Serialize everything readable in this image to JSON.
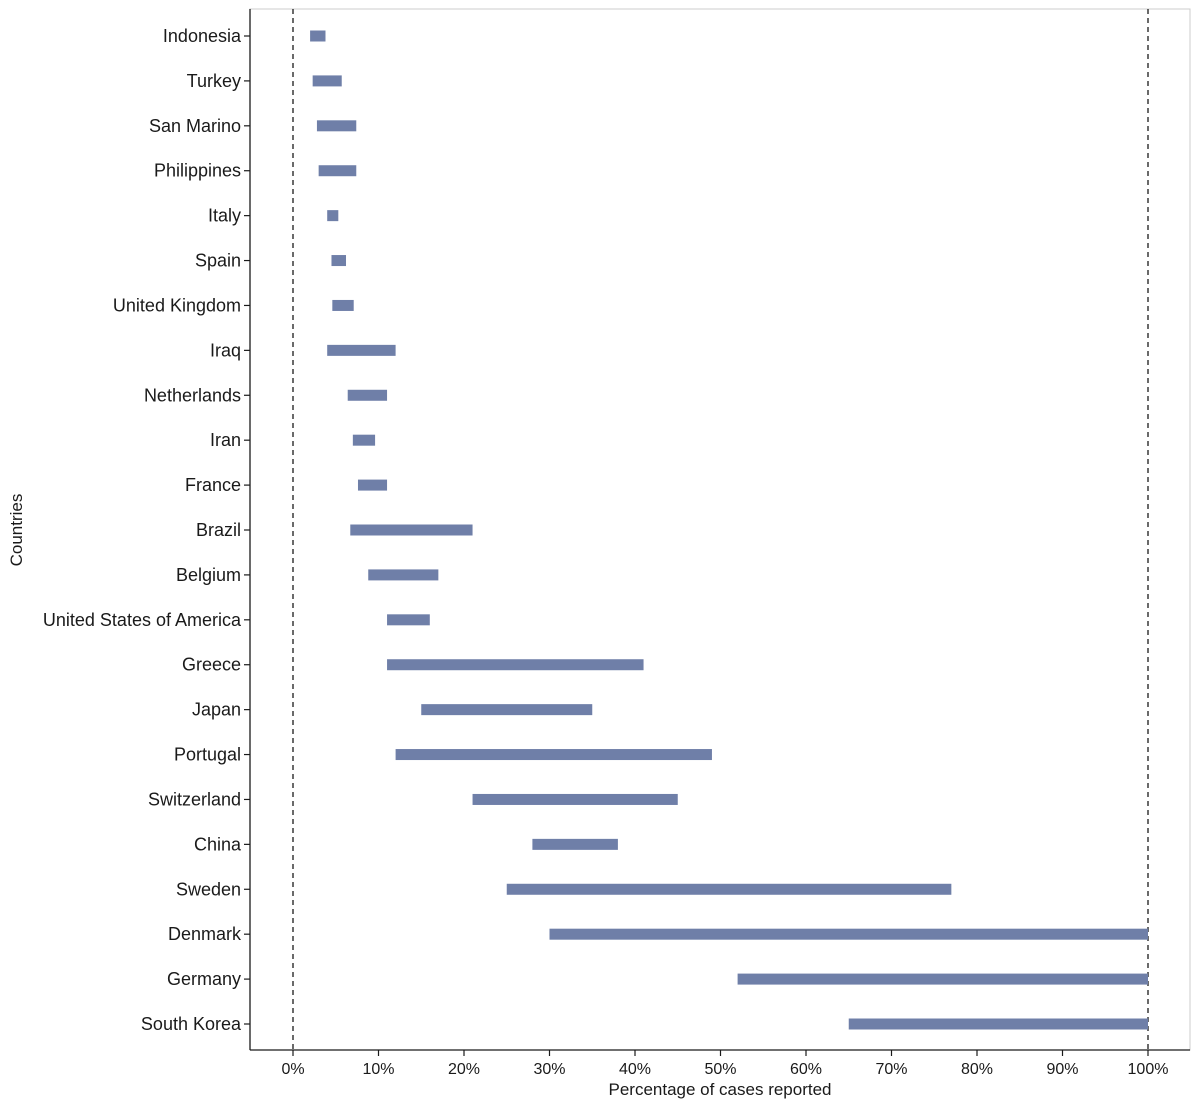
{
  "chart_data": {
    "type": "bar",
    "orientation": "horizontal-range",
    "xlabel": "Percentage of cases reported",
    "ylabel": "Countries",
    "xlim": [
      -5,
      105
    ],
    "x_ticks": [
      0,
      10,
      20,
      30,
      40,
      50,
      60,
      70,
      80,
      90,
      100
    ],
    "x_tick_labels": [
      "0%",
      "10%",
      "20%",
      "30%",
      "40%",
      "50%",
      "60%",
      "70%",
      "80%",
      "90%",
      "100%"
    ],
    "reference_lines": [
      0,
      100
    ],
    "bar_color": "#6f7fa8",
    "categories": [
      "Indonesia",
      "Turkey",
      "San Marino",
      "Philippines",
      "Italy",
      "Spain",
      "United Kingdom",
      "Iraq",
      "Netherlands",
      "Iran",
      "France",
      "Brazil",
      "Belgium",
      "United States of America",
      "Greece",
      "Japan",
      "Portugal",
      "Switzerland",
      "China",
      "Sweden",
      "Denmark",
      "Germany",
      "South Korea"
    ],
    "ranges": [
      [
        2.0,
        3.8
      ],
      [
        2.3,
        5.7
      ],
      [
        2.8,
        7.4
      ],
      [
        3.0,
        7.4
      ],
      [
        4.0,
        5.3
      ],
      [
        4.5,
        6.2
      ],
      [
        4.6,
        7.1
      ],
      [
        4.0,
        12.0
      ],
      [
        6.4,
        11.0
      ],
      [
        7.0,
        9.6
      ],
      [
        7.6,
        11.0
      ],
      [
        6.7,
        21.0
      ],
      [
        8.8,
        17.0
      ],
      [
        11.0,
        16.0
      ],
      [
        11.0,
        41.0
      ],
      [
        15.0,
        35.0
      ],
      [
        12.0,
        49.0
      ],
      [
        21.0,
        45.0
      ],
      [
        28.0,
        38.0
      ],
      [
        25.0,
        77.0
      ],
      [
        30.0,
        100.0
      ],
      [
        52.0,
        100.0
      ],
      [
        65.0,
        100.0
      ]
    ],
    "grid": false,
    "legend": "none"
  }
}
